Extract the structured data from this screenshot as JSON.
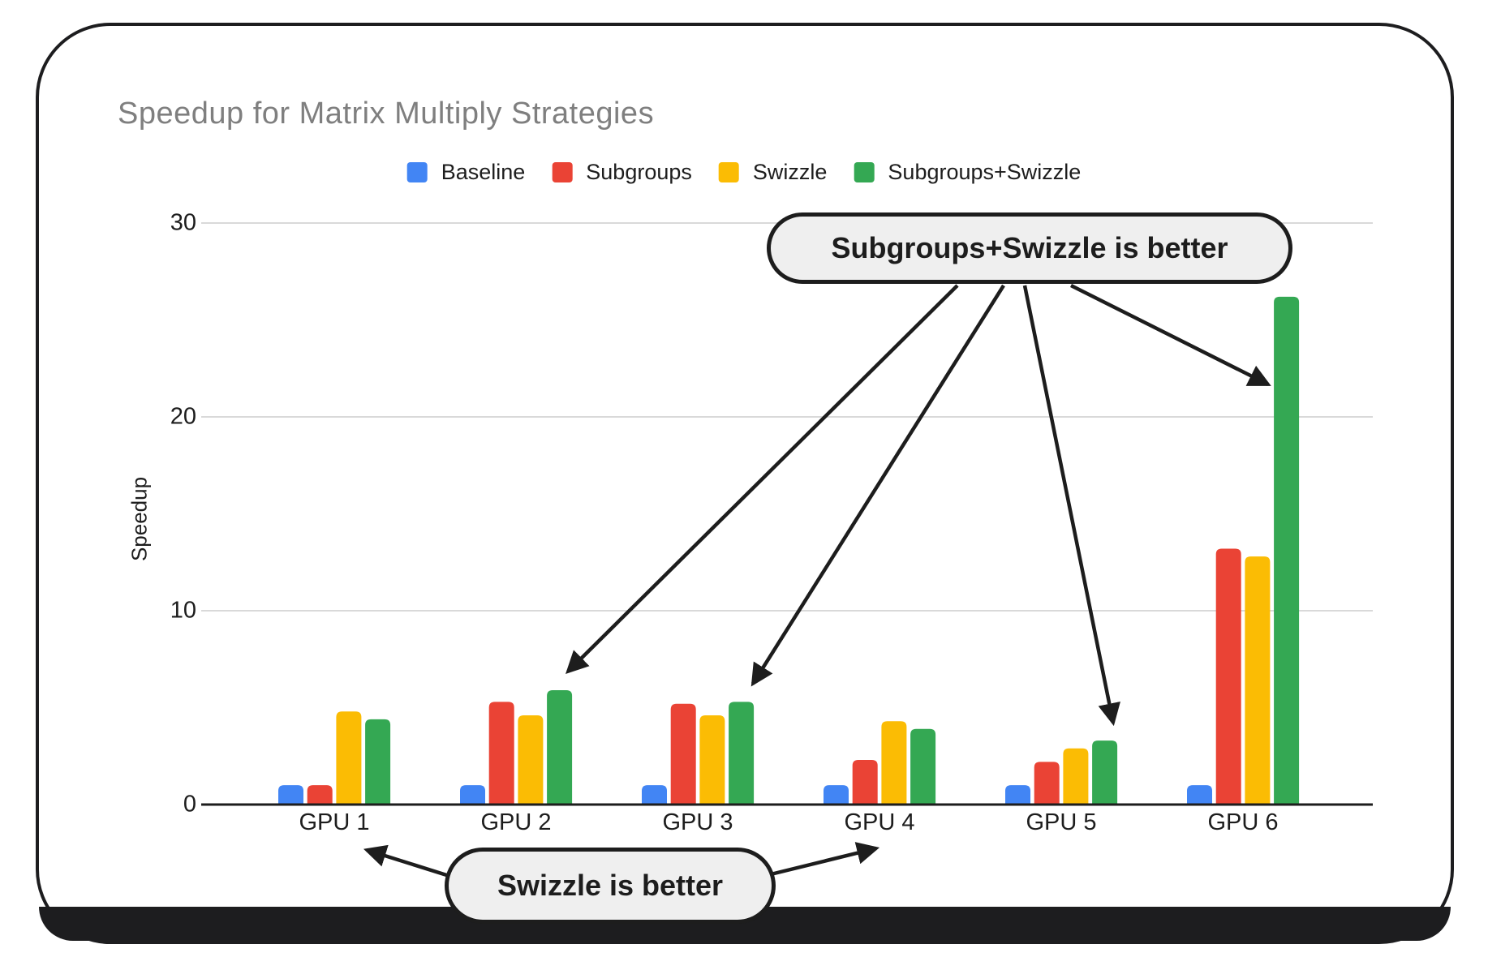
{
  "title": "Speedup for Matrix Multiply Strategies",
  "chart_data": {
    "type": "bar",
    "title": "Speedup for Matrix Multiply Strategies",
    "xlabel": "",
    "ylabel": "Speedup",
    "categories": [
      "GPU 1",
      "GPU 2",
      "GPU 3",
      "GPU 4",
      "GPU 5",
      "GPU 6"
    ],
    "series": [
      {
        "name": "Baseline",
        "color": "#4285F4",
        "values": [
          1.0,
          1.0,
          1.0,
          1.0,
          1.0,
          1.0
        ]
      },
      {
        "name": "Subgroups",
        "color": "#EA4335",
        "values": [
          1.0,
          5.3,
          5.2,
          2.3,
          2.2,
          13.2
        ]
      },
      {
        "name": "Swizzle",
        "color": "#FBBC04",
        "values": [
          4.8,
          4.6,
          4.6,
          4.3,
          2.9,
          12.8
        ]
      },
      {
        "name": "Subgroups+Swizzle",
        "color": "#34A853",
        "values": [
          4.4,
          5.9,
          5.3,
          3.9,
          3.3,
          26.2
        ]
      }
    ],
    "yticks": [
      0,
      10,
      20,
      30
    ],
    "ylim": [
      0,
      32
    ],
    "grid": true,
    "legend_position": "top",
    "annotations": [
      {
        "text": "Subgroups+Swizzle is better",
        "targets": [
          "GPU 2",
          "GPU 3",
          "GPU 5",
          "GPU 6"
        ]
      },
      {
        "text": "Swizzle is better",
        "targets": [
          "GPU 1",
          "GPU 4"
        ]
      }
    ]
  },
  "annotations": {
    "top_callout": {
      "text": "Subgroups+Swizzle is better"
    },
    "bottom_callout": {
      "text": "Swizzle is better"
    }
  },
  "colors": {
    "baseline_blue": "#4285F4",
    "subgroups_red": "#EA4335",
    "swizzle_yellow": "#FBBC04",
    "subgroups_swizzle_green": "#34A853",
    "gridline": "#d9d9d9",
    "axis": "#1d1d1d",
    "title_gray": "#7f7f7f",
    "callout_fill": "#efefef",
    "callout_border": "#1d1d1d",
    "card_border": "#1d1d1f"
  }
}
